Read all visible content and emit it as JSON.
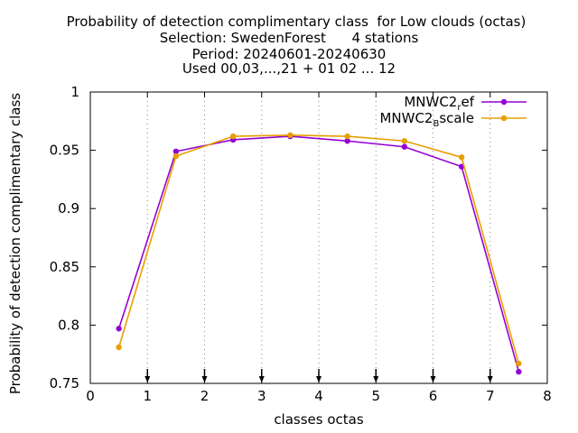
{
  "chart_data": {
    "type": "line",
    "title_lines": [
      "Probability of detection complimentary class  for Low clouds (octas)",
      "Selection: SwedenForest      4 stations",
      "Period: 20240601-20240630",
      "Used 00,03,...,21 + 01 02 ... 12"
    ],
    "xlabel": "classes octas",
    "ylabel": "Probability of detection complimentary class",
    "xlim": [
      0,
      8
    ],
    "ylim": [
      0.75,
      1.0
    ],
    "xticks": [
      "0",
      "1",
      "2",
      "3",
      "4",
      "5",
      "6",
      "7",
      "8"
    ],
    "yticks": [
      "0.75",
      "0.8",
      "0.85",
      "0.9",
      "0.95",
      "1"
    ],
    "grid": "vertical dotted at x = 1..7",
    "legend_position": "top-right",
    "x": [
      0.5,
      1.5,
      2.5,
      3.5,
      4.5,
      5.5,
      6.5,
      7.5
    ],
    "series": [
      {
        "name": "MNWC2_ref",
        "legend_base": "MNWC2",
        "legend_sub": "r",
        "legend_rest": "ef",
        "color": "#9400d3",
        "values": [
          0.797,
          0.949,
          0.959,
          0.962,
          0.958,
          0.953,
          0.936,
          0.76
        ]
      },
      {
        "name": "MNWC2_Bscale",
        "legend_base": "MNWC2",
        "legend_sub": "B",
        "legend_rest": "scale",
        "color": "#e69f00",
        "values": [
          0.781,
          0.945,
          0.962,
          0.963,
          0.962,
          0.958,
          0.944,
          0.767
        ]
      }
    ],
    "arrow_markers_x": [
      1,
      2,
      3,
      4,
      5,
      6,
      7
    ]
  }
}
